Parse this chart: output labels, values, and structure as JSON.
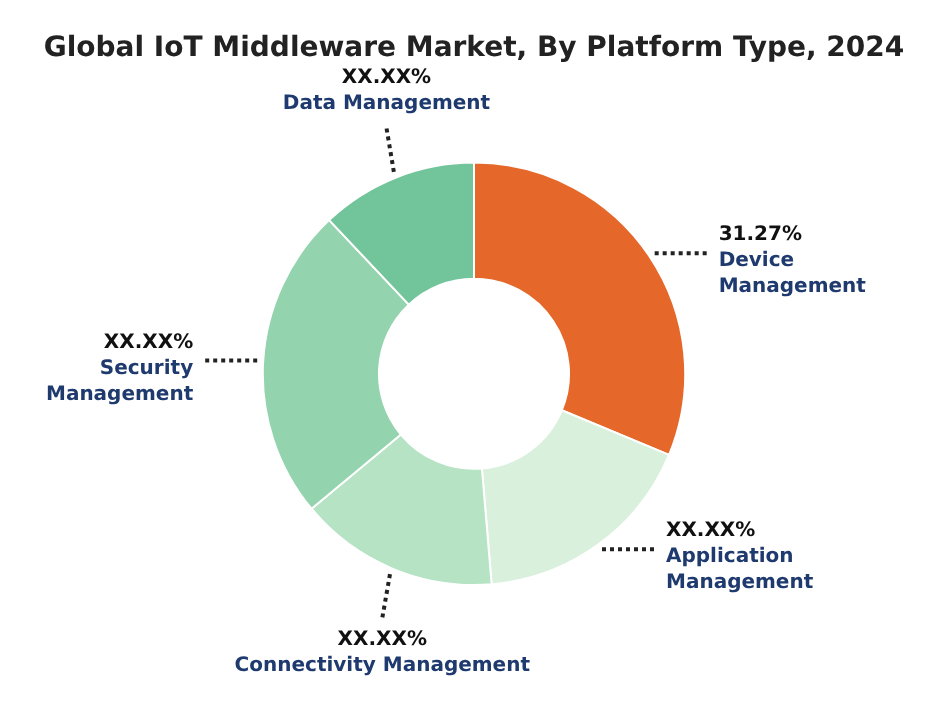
{
  "chart_data": {
    "type": "donut",
    "title": "Global IoT Middleware Market, By Platform Type, 2024",
    "categories": [
      "Device Management",
      "Application Management",
      "Connectivity Management",
      "Security Management",
      "Data Management"
    ],
    "values": [
      31.27,
      17.4,
      15.3,
      24.0,
      12.03
    ],
    "colors": [
      "#e5672a",
      "#d9f0dc",
      "#b5e3c4",
      "#93d3ad",
      "#72c49a"
    ],
    "value_labels": [
      "31.27%",
      "XX.XX%",
      "XX.XX%",
      "XX.XX%",
      "XX.XX%"
    ],
    "legend": false
  }
}
